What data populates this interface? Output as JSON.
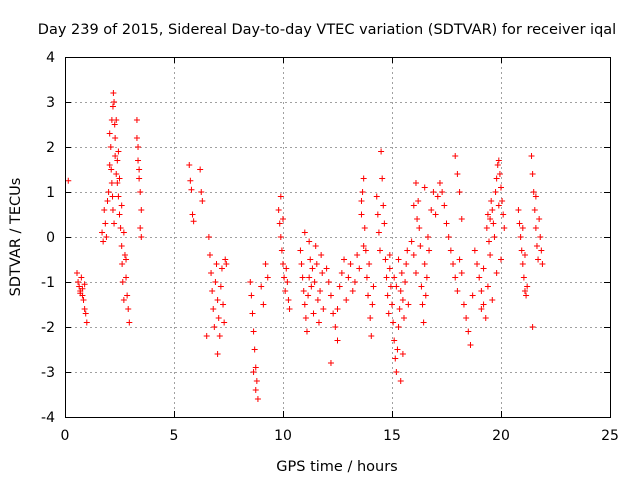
{
  "chart_data": {
    "type": "scatter",
    "title": "Day 239 of 2015, Sidereal Day-to-day VTEC variation (SDTVAR) for receiver iqal",
    "xlabel": "GPS time / hours",
    "ylabel": "SDTVAR / TECUs",
    "xlim": [
      0,
      25
    ],
    "ylim": [
      -4,
      4
    ],
    "x_ticks": [
      0,
      5,
      10,
      15,
      20,
      25
    ],
    "x_tick_labels": [
      "0",
      "5",
      "10",
      "15",
      "20",
      "25"
    ],
    "y_ticks": [
      -4,
      -3,
      -2,
      -1,
      0,
      1,
      2,
      3,
      4
    ],
    "y_tick_labels": [
      "-4",
      "-3",
      "-2",
      "-1",
      "0",
      "1",
      "2",
      "3",
      "4"
    ],
    "grid": true,
    "marker": "plus",
    "marker_color": "#ff0000",
    "series": [
      {
        "name": "SDTVAR",
        "points": [
          [
            0.15,
            1.25
          ],
          [
            0.55,
            -0.8
          ],
          [
            0.6,
            -1.0
          ],
          [
            0.65,
            -1.1
          ],
          [
            0.7,
            -1.2
          ],
          [
            0.75,
            -0.9
          ],
          [
            0.8,
            -1.3
          ],
          [
            0.85,
            -1.4
          ],
          [
            0.9,
            -1.6
          ],
          [
            0.95,
            -1.7
          ],
          [
            1.0,
            -1.9
          ],
          [
            0.9,
            -1.05
          ],
          [
            0.7,
            -1.25
          ],
          [
            0.8,
            -1.15
          ],
          [
            1.7,
            0.1
          ],
          [
            1.75,
            -0.1
          ],
          [
            1.8,
            0.6
          ],
          [
            1.85,
            0.3
          ],
          [
            1.9,
            0.0
          ],
          [
            1.95,
            0.8
          ],
          [
            2.0,
            1.0
          ],
          [
            2.05,
            1.6
          ],
          [
            2.1,
            2.0
          ],
          [
            2.15,
            2.6
          ],
          [
            2.2,
            2.9
          ],
          [
            2.22,
            3.2
          ],
          [
            2.25,
            3.0
          ],
          [
            2.28,
            2.5
          ],
          [
            2.3,
            1.8
          ],
          [
            2.35,
            1.4
          ],
          [
            2.4,
            1.2
          ],
          [
            2.45,
            0.9
          ],
          [
            2.5,
            0.5
          ],
          [
            2.55,
            0.2
          ],
          [
            2.6,
            -0.2
          ],
          [
            2.62,
            -0.6
          ],
          [
            2.65,
            -1.0
          ],
          [
            2.7,
            -1.4
          ],
          [
            2.75,
            -0.4
          ],
          [
            2.8,
            -0.9
          ],
          [
            2.85,
            -1.3
          ],
          [
            2.9,
            -1.6
          ],
          [
            2.95,
            -1.9
          ],
          [
            2.15,
            1.2
          ],
          [
            2.2,
            0.6
          ],
          [
            2.25,
            0.3
          ],
          [
            2.3,
            2.2
          ],
          [
            2.4,
            1.7
          ],
          [
            2.5,
            1.3
          ],
          [
            2.6,
            0.7
          ],
          [
            2.7,
            0.1
          ],
          [
            2.8,
            -0.5
          ],
          [
            2.05,
            2.3
          ],
          [
            2.12,
            1.5
          ],
          [
            2.18,
            0.9
          ],
          [
            2.35,
            2.6
          ],
          [
            2.45,
            1.9
          ],
          [
            3.3,
            2.6
          ],
          [
            3.35,
            2.0
          ],
          [
            3.4,
            1.5
          ],
          [
            3.45,
            1.0
          ],
          [
            3.5,
            0.6
          ],
          [
            3.35,
            1.7
          ],
          [
            3.4,
            1.3
          ],
          [
            3.45,
            0.2
          ],
          [
            3.5,
            0.0
          ],
          [
            3.3,
            2.2
          ],
          [
            5.7,
            1.6
          ],
          [
            5.75,
            1.25
          ],
          [
            5.8,
            1.05
          ],
          [
            5.85,
            0.5
          ],
          [
            5.9,
            0.35
          ],
          [
            6.2,
            1.5
          ],
          [
            6.25,
            1.0
          ],
          [
            6.3,
            0.8
          ],
          [
            6.6,
            0.0
          ],
          [
            6.65,
            -0.4
          ],
          [
            6.7,
            -0.8
          ],
          [
            6.75,
            -1.2
          ],
          [
            6.8,
            -1.6
          ],
          [
            6.85,
            -2.0
          ],
          [
            6.9,
            -1.0
          ],
          [
            6.95,
            -0.6
          ],
          [
            7.0,
            -1.4
          ],
          [
            7.05,
            -1.8
          ],
          [
            7.1,
            -2.2
          ],
          [
            7.15,
            -1.1
          ],
          [
            7.2,
            -0.7
          ],
          [
            7.25,
            -1.5
          ],
          [
            7.3,
            -1.9
          ],
          [
            7.35,
            -0.5
          ],
          [
            6.5,
            -2.2
          ],
          [
            7.0,
            -2.6
          ],
          [
            7.4,
            -0.6
          ],
          [
            8.5,
            -1.0
          ],
          [
            8.55,
            -1.3
          ],
          [
            8.6,
            -1.7
          ],
          [
            8.65,
            -2.1
          ],
          [
            8.7,
            -2.5
          ],
          [
            8.75,
            -2.9
          ],
          [
            8.8,
            -3.2
          ],
          [
            8.85,
            -3.6
          ],
          [
            8.65,
            -3.0
          ],
          [
            8.75,
            -3.4
          ],
          [
            9.0,
            -1.1
          ],
          [
            9.1,
            -1.5
          ],
          [
            9.2,
            -0.6
          ],
          [
            9.3,
            -0.9
          ],
          [
            9.8,
            0.6
          ],
          [
            9.85,
            0.3
          ],
          [
            9.9,
            0.0
          ],
          [
            9.95,
            -0.3
          ],
          [
            10.0,
            -0.6
          ],
          [
            10.05,
            -0.9
          ],
          [
            10.1,
            -1.2
          ],
          [
            10.15,
            -0.7
          ],
          [
            10.2,
            -1.0
          ],
          [
            10.25,
            -1.4
          ],
          [
            10.3,
            -1.6
          ],
          [
            9.9,
            0.9
          ],
          [
            10.0,
            0.4
          ],
          [
            10.8,
            -0.3
          ],
          [
            10.85,
            -0.6
          ],
          [
            10.9,
            -0.9
          ],
          [
            10.95,
            -1.2
          ],
          [
            11.0,
            -1.5
          ],
          [
            11.05,
            -1.8
          ],
          [
            11.1,
            -2.1
          ],
          [
            11.15,
            -1.3
          ],
          [
            11.2,
            -0.9
          ],
          [
            11.25,
            -0.5
          ],
          [
            11.3,
            -1.1
          ],
          [
            11.35,
            -0.7
          ],
          [
            11.4,
            -1.7
          ],
          [
            11.45,
            -1.0
          ],
          [
            11.5,
            -0.2
          ],
          [
            11.55,
            -0.6
          ],
          [
            11.6,
            -1.4
          ],
          [
            11.65,
            -1.9
          ],
          [
            11.7,
            -1.2
          ],
          [
            11.75,
            -0.4
          ],
          [
            11.8,
            -0.8
          ],
          [
            11.85,
            -1.6
          ],
          [
            11.0,
            0.1
          ],
          [
            11.2,
            -0.1
          ],
          [
            12.0,
            -0.7
          ],
          [
            12.1,
            -1.0
          ],
          [
            12.2,
            -1.3
          ],
          [
            12.3,
            -1.7
          ],
          [
            12.4,
            -2.0
          ],
          [
            12.5,
            -2.3
          ],
          [
            12.6,
            -1.1
          ],
          [
            12.7,
            -0.8
          ],
          [
            12.8,
            -0.5
          ],
          [
            12.9,
            -1.4
          ],
          [
            13.0,
            -0.9
          ],
          [
            13.1,
            -0.6
          ],
          [
            13.2,
            -1.2
          ],
          [
            12.2,
            -2.8
          ],
          [
            12.5,
            -1.6
          ],
          [
            13.3,
            -1.0
          ],
          [
            13.4,
            -0.4
          ],
          [
            13.5,
            -0.7
          ],
          [
            13.6,
            0.5
          ],
          [
            13.65,
            1.0
          ],
          [
            13.7,
            1.3
          ],
          [
            13.75,
            0.2
          ],
          [
            13.8,
            -0.3
          ],
          [
            13.85,
            -0.9
          ],
          [
            13.9,
            -1.3
          ],
          [
            13.95,
            -0.6
          ],
          [
            14.0,
            -1.8
          ],
          [
            14.05,
            -2.2
          ],
          [
            14.1,
            -1.5
          ],
          [
            14.15,
            -1.1
          ],
          [
            13.6,
            0.8
          ],
          [
            13.7,
            -0.2
          ],
          [
            14.3,
            0.9
          ],
          [
            14.35,
            0.5
          ],
          [
            14.4,
            0.1
          ],
          [
            14.45,
            -0.3
          ],
          [
            14.5,
            1.9
          ],
          [
            14.55,
            1.3
          ],
          [
            14.6,
            0.7
          ],
          [
            14.65,
            0.3
          ],
          [
            14.7,
            -0.5
          ],
          [
            14.75,
            -0.9
          ],
          [
            14.8,
            -1.3
          ],
          [
            14.85,
            -1.7
          ],
          [
            14.9,
            -0.7
          ],
          [
            14.95,
            -1.1
          ],
          [
            15.0,
            -1.5
          ],
          [
            15.05,
            -1.9
          ],
          [
            15.1,
            -2.3
          ],
          [
            15.15,
            -2.7
          ],
          [
            15.2,
            -3.0
          ],
          [
            15.25,
            -2.5
          ],
          [
            15.3,
            -2.0
          ],
          [
            15.35,
            -1.6
          ],
          [
            15.4,
            -1.2
          ],
          [
            15.45,
            -0.8
          ],
          [
            15.5,
            -1.4
          ],
          [
            15.55,
            -1.8
          ],
          [
            15.6,
            -1.0
          ],
          [
            15.65,
            -0.6
          ],
          [
            15.7,
            -0.3
          ],
          [
            15.75,
            -1.5
          ],
          [
            15.2,
            -1.1
          ],
          [
            15.3,
            -0.5
          ],
          [
            15.4,
            -3.2
          ],
          [
            15.5,
            -2.6
          ],
          [
            15.1,
            -0.9
          ],
          [
            14.9,
            -0.4
          ],
          [
            15.9,
            -0.1
          ],
          [
            16.0,
            -0.4
          ],
          [
            16.1,
            -0.8
          ],
          [
            16.15,
            0.4
          ],
          [
            16.2,
            0.8
          ],
          [
            16.25,
            0.2
          ],
          [
            16.3,
            -0.2
          ],
          [
            16.35,
            -1.1
          ],
          [
            16.4,
            -1.5
          ],
          [
            16.45,
            -1.9
          ],
          [
            16.5,
            -0.6
          ],
          [
            16.55,
            -1.3
          ],
          [
            16.6,
            -0.9
          ],
          [
            16.65,
            0.0
          ],
          [
            16.7,
            -0.3
          ],
          [
            16.8,
            0.6
          ],
          [
            16.9,
            1.0
          ],
          [
            16.1,
            1.2
          ],
          [
            16.5,
            1.1
          ],
          [
            16.0,
            0.7
          ],
          [
            17.0,
            0.5
          ],
          [
            17.1,
            0.9
          ],
          [
            17.2,
            1.2
          ],
          [
            17.3,
            1.0
          ],
          [
            17.4,
            0.7
          ],
          [
            17.5,
            0.3
          ],
          [
            17.6,
            0.0
          ],
          [
            17.7,
            -0.3
          ],
          [
            17.8,
            -0.6
          ],
          [
            17.9,
            -0.9
          ],
          [
            18.0,
            -1.2
          ],
          [
            18.1,
            -0.5
          ],
          [
            18.2,
            -0.8
          ],
          [
            18.3,
            -1.5
          ],
          [
            18.4,
            -1.8
          ],
          [
            18.5,
            -2.1
          ],
          [
            18.6,
            -2.4
          ],
          [
            18.7,
            -1.3
          ],
          [
            17.9,
            1.8
          ],
          [
            18.0,
            1.4
          ],
          [
            18.1,
            1.0
          ],
          [
            18.2,
            0.4
          ],
          [
            18.8,
            -0.3
          ],
          [
            18.9,
            -0.6
          ],
          [
            19.0,
            -0.9
          ],
          [
            19.1,
            -1.2
          ],
          [
            19.2,
            -1.5
          ],
          [
            19.3,
            -1.8
          ],
          [
            19.35,
            0.2
          ],
          [
            19.4,
            0.5
          ],
          [
            19.45,
            -0.1
          ],
          [
            19.5,
            -0.4
          ],
          [
            19.55,
            0.8
          ],
          [
            19.6,
            0.6
          ],
          [
            19.65,
            0.3
          ],
          [
            19.7,
            0.0
          ],
          [
            19.75,
            1.0
          ],
          [
            19.8,
            1.3
          ],
          [
            19.85,
            1.6
          ],
          [
            19.9,
            1.7
          ],
          [
            19.95,
            1.4
          ],
          [
            20.0,
            1.1
          ],
          [
            20.05,
            0.8
          ],
          [
            20.1,
            0.5
          ],
          [
            20.15,
            0.2
          ],
          [
            19.2,
            -0.7
          ],
          [
            19.4,
            -1.1
          ],
          [
            19.6,
            -1.4
          ],
          [
            19.8,
            -0.8
          ],
          [
            20.0,
            -0.5
          ],
          [
            19.1,
            -1.6
          ],
          [
            19.5,
            0.4
          ],
          [
            19.9,
            0.7
          ],
          [
            20.8,
            0.6
          ],
          [
            20.85,
            0.3
          ],
          [
            20.9,
            0.0
          ],
          [
            20.95,
            -0.3
          ],
          [
            21.0,
            -0.6
          ],
          [
            21.05,
            -0.9
          ],
          [
            21.1,
            -1.2
          ],
          [
            21.15,
            -1.3
          ],
          [
            21.2,
            -1.1
          ],
          [
            21.0,
            0.2
          ],
          [
            21.1,
            -0.4
          ],
          [
            21.4,
            1.8
          ],
          [
            21.45,
            1.4
          ],
          [
            21.5,
            1.0
          ],
          [
            21.55,
            0.6
          ],
          [
            21.6,
            0.2
          ],
          [
            21.65,
            -0.2
          ],
          [
            21.7,
            -0.5
          ],
          [
            21.75,
            0.4
          ],
          [
            21.8,
            0.0
          ],
          [
            21.85,
            -0.3
          ],
          [
            21.9,
            -0.6
          ],
          [
            21.45,
            -2.0
          ],
          [
            21.6,
            0.9
          ]
        ]
      }
    ]
  }
}
